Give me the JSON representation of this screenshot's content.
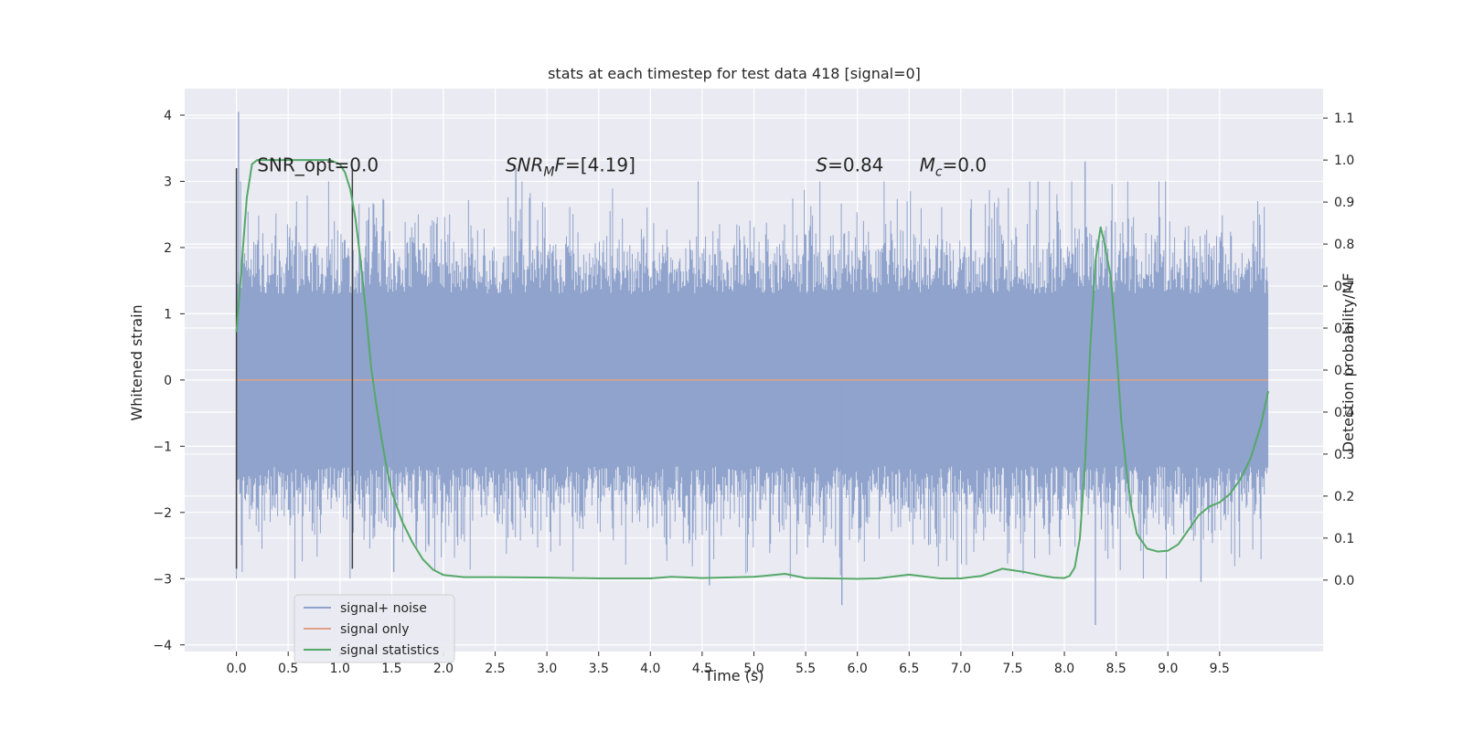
{
  "chart_data": {
    "type": "line",
    "title": "stats at each timestep for test data 418 [signal=0]",
    "xlabel": "Time (s)",
    "ylabel": "Whitened strain",
    "y2label": "Detection probability/MF",
    "xlim": [
      -0.5,
      10.5
    ],
    "ylim": [
      -4.1,
      4.4
    ],
    "y2lim": [
      -0.17,
      1.17
    ],
    "x_ticks": [
      0.0,
      0.5,
      1.0,
      1.5,
      2.0,
      2.5,
      3.0,
      3.5,
      4.0,
      4.5,
      5.0,
      5.5,
      6.0,
      6.5,
      7.0,
      7.5,
      8.0,
      8.5,
      9.0,
      9.5
    ],
    "x_tick_labels": [
      "0.0",
      "0.5",
      "1.0",
      "1.5",
      "2.0",
      "2.5",
      "3.0",
      "3.5",
      "4.0",
      "4.5",
      "5.0",
      "5.5",
      "6.0",
      "6.5",
      "7.0",
      "7.5",
      "8.0",
      "8.5",
      "9.0",
      "9.5"
    ],
    "y_ticks": [
      4,
      3,
      2,
      1,
      0,
      -1,
      -2,
      -3,
      -4
    ],
    "y_tick_labels": [
      "4",
      "3",
      "2",
      "1",
      "0",
      "−1",
      "−2",
      "−3",
      "−4"
    ],
    "y2_ticks": [
      1.1,
      1.0,
      0.9,
      0.8,
      0.7,
      0.6,
      0.5,
      0.4,
      0.3,
      0.2,
      0.1,
      0.0
    ],
    "y2_tick_labels": [
      "1.1",
      "1.0",
      "0.9",
      "0.8",
      "0.7",
      "0.6",
      "0.5",
      "0.4",
      "0.3",
      "0.2",
      "0.1",
      "0.0"
    ],
    "grid": true,
    "legend_position": "lower-left",
    "series": [
      {
        "name": "signal+ noise",
        "color": "#8fa3cc",
        "axis": "left",
        "kind": "noise",
        "x_range": [
          0.0,
          9.97
        ],
        "core_amplitude": 1.3,
        "notable_peaks": [
          {
            "x": 0.02,
            "y": 4.05
          },
          {
            "x": 0.0,
            "y": -2.85
          },
          {
            "x": 1.12,
            "y": -2.85
          },
          {
            "x": 2.7,
            "y": 3.2
          },
          {
            "x": 5.85,
            "y": -3.4
          },
          {
            "x": 8.2,
            "y": 3.3
          },
          {
            "x": 8.3,
            "y": -3.7
          },
          {
            "x": 4.57,
            "y": -3.1
          },
          {
            "x": 9.32,
            "y": -3.05
          },
          {
            "x": 1.52,
            "y": -2.9
          }
        ]
      },
      {
        "name": "signal only",
        "color": "#e0a088",
        "axis": "left",
        "x": [
          0.0,
          9.97
        ],
        "y": [
          0.0,
          0.0
        ]
      },
      {
        "name": "signal statistics",
        "color": "#55a868",
        "axis": "right",
        "x": [
          0.0,
          0.05,
          0.1,
          0.15,
          0.2,
          0.3,
          0.5,
          0.7,
          0.9,
          1.0,
          1.05,
          1.1,
          1.15,
          1.2,
          1.25,
          1.3,
          1.35,
          1.4,
          1.45,
          1.5,
          1.6,
          1.7,
          1.8,
          1.9,
          2.0,
          2.2,
          2.5,
          3.0,
          3.5,
          4.0,
          4.2,
          4.5,
          5.0,
          5.1,
          5.3,
          5.5,
          6.0,
          6.2,
          6.5,
          6.8,
          7.0,
          7.2,
          7.4,
          7.6,
          7.8,
          7.9,
          8.0,
          8.05,
          8.1,
          8.15,
          8.2,
          8.25,
          8.3,
          8.35,
          8.38,
          8.45,
          8.5,
          8.55,
          8.6,
          8.65,
          8.7,
          8.8,
          8.9,
          9.0,
          9.1,
          9.2,
          9.3,
          9.4,
          9.5,
          9.6,
          9.7,
          9.8,
          9.9,
          9.97
        ],
        "y": [
          0.59,
          0.75,
          0.91,
          0.99,
          1.0,
          1.0,
          1.0,
          1.0,
          1.0,
          0.99,
          0.97,
          0.93,
          0.86,
          0.76,
          0.64,
          0.51,
          0.42,
          0.34,
          0.27,
          0.21,
          0.14,
          0.09,
          0.05,
          0.025,
          0.012,
          0.007,
          0.007,
          0.006,
          0.004,
          0.004,
          0.008,
          0.005,
          0.008,
          0.01,
          0.015,
          0.005,
          0.003,
          0.004,
          0.013,
          0.004,
          0.004,
          0.01,
          0.027,
          0.02,
          0.01,
          0.006,
          0.005,
          0.01,
          0.03,
          0.1,
          0.28,
          0.55,
          0.76,
          0.84,
          0.81,
          0.72,
          0.56,
          0.38,
          0.26,
          0.17,
          0.11,
          0.075,
          0.068,
          0.07,
          0.085,
          0.12,
          0.155,
          0.175,
          0.185,
          0.205,
          0.24,
          0.29,
          0.37,
          0.45
        ]
      }
    ],
    "vertical_markers": [
      {
        "x": 0.0,
        "y0": -2.85,
        "y1": 3.2,
        "color": "#404040"
      },
      {
        "x": 1.12,
        "y0": -2.85,
        "y1": 3.2,
        "color": "#404040"
      }
    ],
    "annotations": [
      {
        "x": 0.2,
        "y": 3.15,
        "text": "SNR_opt=0.0"
      },
      {
        "x": 2.6,
        "y": 3.15,
        "text": "SNRMF=[4.19]"
      },
      {
        "x": 5.6,
        "y": 3.15,
        "text": "S=0.84"
      },
      {
        "x": 6.6,
        "y": 3.15,
        "text": "Mc=0.0"
      }
    ]
  }
}
